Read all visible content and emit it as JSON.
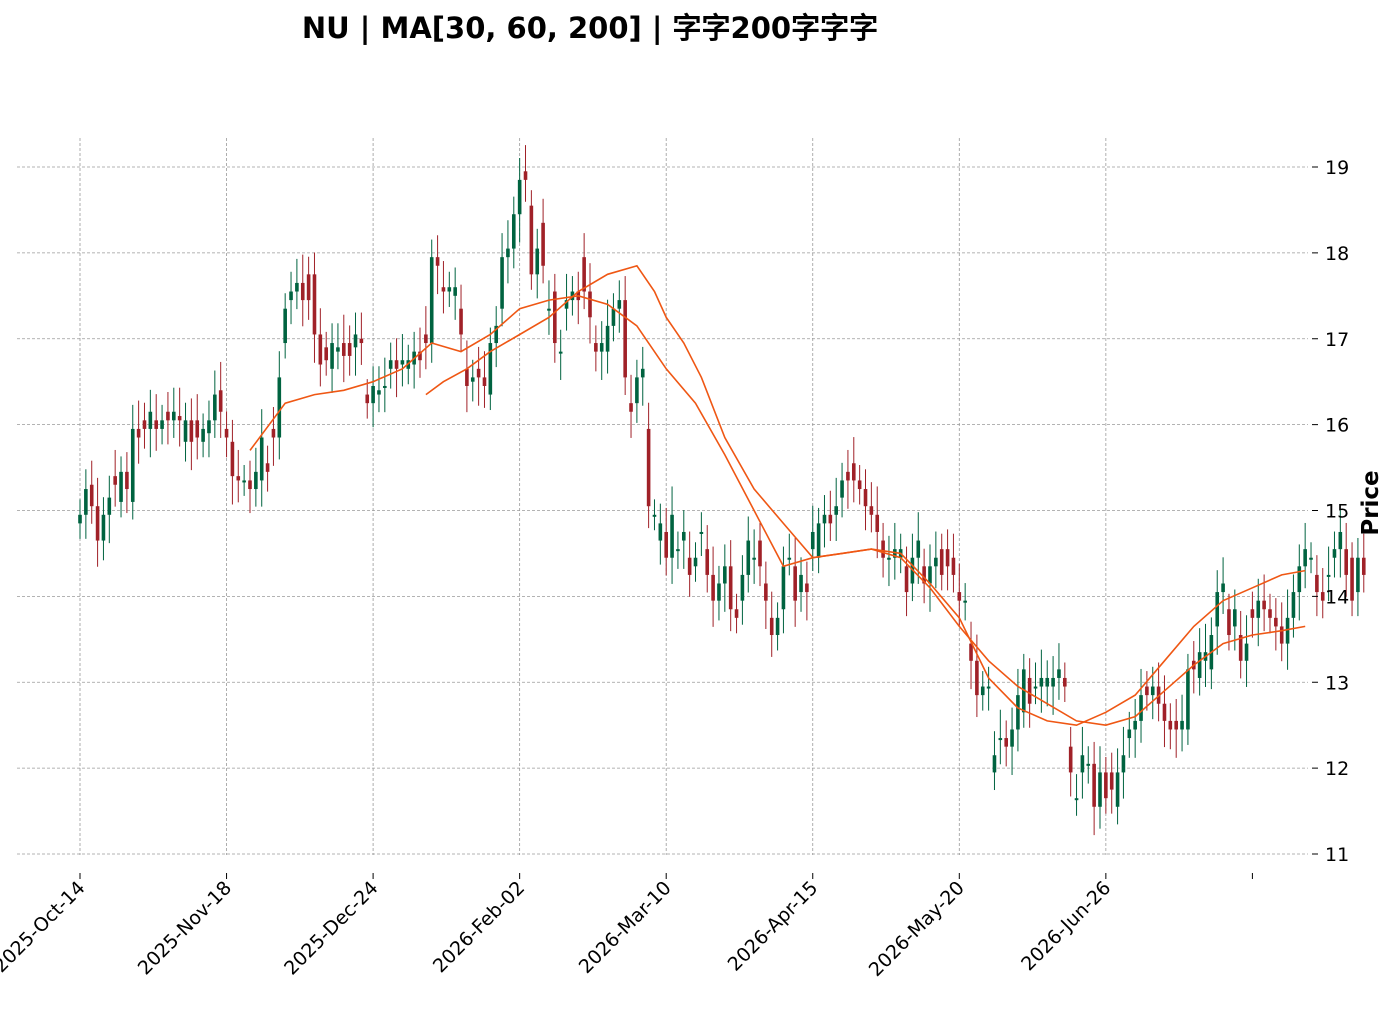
{
  "chart_data": {
    "type": "candlestick",
    "title": "NU  |  MA[30, 60, 200]  |  字字200字字字",
    "xlabel": "",
    "ylabel": "Price",
    "ylim": [
      10.8,
      19.3
    ],
    "y_ticks": [
      11,
      12,
      13,
      14,
      15,
      16,
      17,
      18,
      19
    ],
    "x_ticks": [
      "2025-Oct-14",
      "2025-Nov-18",
      "2025-Dec-24",
      "2026-Feb-02",
      "2026-Mar-10",
      "2026-Apr-15",
      "2026-May-20",
      "2026-Jun-26"
    ],
    "x_tick_positions": [
      0,
      25,
      50,
      75,
      100,
      125,
      150,
      175
    ],
    "x_range": [
      -11,
      210
    ],
    "grid": true,
    "colors": {
      "up": "#006340",
      "down": "#a02128",
      "ma": "#ef5714"
    },
    "candles": [
      [
        14.85,
        14.95
      ],
      [
        14.95,
        15.25
      ],
      [
        15.3,
        15.05
      ],
      [
        15.05,
        14.65
      ],
      [
        14.65,
        14.95
      ],
      [
        14.95,
        15.15
      ],
      [
        15.4,
        15.3
      ],
      [
        15.1,
        15.45
      ],
      [
        15.45,
        15.25
      ],
      [
        15.1,
        15.95
      ],
      [
        15.95,
        15.85
      ],
      [
        16.05,
        15.95
      ],
      [
        15.95,
        16.15
      ],
      [
        16.05,
        15.95
      ],
      [
        15.95,
        16.05
      ],
      [
        16.15,
        16.05
      ],
      [
        16.05,
        16.15
      ],
      [
        16.1,
        16.05
      ],
      [
        15.8,
        16.05
      ],
      [
        16.05,
        15.8
      ],
      [
        16.05,
        15.85
      ],
      [
        15.8,
        15.95
      ],
      [
        15.9,
        16.05
      ],
      [
        16.05,
        16.35
      ],
      [
        16.4,
        16.15
      ],
      [
        15.95,
        15.85
      ],
      [
        15.8,
        15.4
      ],
      [
        15.4,
        15.35
      ],
      [
        15.35,
        15.35
      ],
      [
        15.35,
        15.25
      ],
      [
        15.25,
        15.45
      ],
      [
        15.35,
        15.85
      ],
      [
        15.55,
        15.45
      ],
      [
        15.95,
        15.85
      ],
      [
        15.85,
        16.55
      ],
      [
        16.95,
        17.35
      ],
      [
        17.45,
        17.55
      ],
      [
        17.55,
        17.65
      ],
      [
        17.65,
        17.45
      ],
      [
        17.75,
        17.45
      ],
      [
        17.75,
        17.05
      ],
      [
        17.05,
        16.7
      ],
      [
        16.9,
        16.75
      ],
      [
        16.65,
        16.95
      ],
      [
        16.85,
        16.9
      ],
      [
        16.95,
        16.8
      ],
      [
        16.95,
        16.8
      ],
      [
        16.9,
        17.05
      ],
      [
        17.0,
        16.95
      ],
      [
        16.35,
        16.25
      ],
      [
        16.25,
        16.45
      ],
      [
        16.35,
        16.4
      ],
      [
        16.45,
        16.45
      ],
      [
        16.65,
        16.75
      ],
      [
        16.75,
        16.65
      ],
      [
        16.7,
        16.75
      ],
      [
        16.65,
        16.75
      ],
      [
        16.7,
        16.85
      ],
      [
        16.85,
        16.75
      ],
      [
        17.05,
        16.95
      ],
      [
        16.95,
        17.95
      ],
      [
        17.95,
        17.85
      ],
      [
        17.6,
        17.55
      ],
      [
        17.55,
        17.6
      ],
      [
        17.5,
        17.6
      ],
      [
        17.35,
        17.05
      ],
      [
        16.65,
        16.45
      ],
      [
        16.5,
        16.55
      ],
      [
        16.65,
        16.55
      ],
      [
        16.55,
        16.45
      ],
      [
        16.35,
        16.95
      ],
      [
        16.95,
        17.15
      ],
      [
        17.35,
        17.95
      ],
      [
        17.95,
        18.05
      ],
      [
        18.05,
        18.45
      ],
      [
        18.45,
        18.85
      ],
      [
        18.95,
        18.85
      ],
      [
        18.55,
        17.75
      ],
      [
        17.75,
        18.05
      ],
      [
        18.35,
        17.85
      ],
      [
        17.35,
        17.35
      ],
      [
        17.55,
        16.95
      ],
      [
        16.85,
        16.85
      ],
      [
        17.35,
        17.45
      ],
      [
        17.45,
        17.55
      ],
      [
        17.55,
        17.45
      ],
      [
        17.95,
        17.55
      ],
      [
        17.55,
        17.25
      ],
      [
        16.95,
        16.85
      ],
      [
        16.85,
        16.95
      ],
      [
        16.85,
        17.15
      ],
      [
        17.15,
        17.35
      ],
      [
        17.35,
        17.45
      ],
      [
        17.45,
        16.55
      ],
      [
        16.25,
        16.15
      ],
      [
        16.25,
        16.55
      ],
      [
        16.55,
        16.65
      ],
      [
        15.95,
        15.05
      ],
      [
        14.95,
        14.95
      ],
      [
        14.65,
        14.85
      ],
      [
        14.75,
        14.45
      ],
      [
        14.45,
        14.95
      ],
      [
        14.55,
        14.55
      ],
      [
        14.65,
        14.75
      ],
      [
        14.45,
        14.25
      ],
      [
        14.35,
        14.45
      ],
      [
        14.75,
        14.75
      ],
      [
        14.55,
        14.25
      ],
      [
        14.25,
        13.95
      ],
      [
        13.95,
        14.15
      ],
      [
        14.15,
        14.35
      ],
      [
        14.35,
        13.85
      ],
      [
        13.85,
        13.75
      ],
      [
        13.95,
        14.25
      ],
      [
        14.25,
        14.65
      ],
      [
        14.45,
        14.45
      ],
      [
        14.65,
        14.35
      ],
      [
        14.15,
        13.95
      ],
      [
        13.75,
        13.55
      ],
      [
        13.55,
        13.75
      ],
      [
        13.85,
        14.35
      ],
      [
        14.45,
        14.45
      ],
      [
        14.35,
        13.95
      ],
      [
        14.05,
        14.25
      ],
      [
        14.15,
        14.05
      ],
      [
        14.55,
        14.75
      ],
      [
        14.45,
        14.85
      ],
      [
        14.85,
        14.95
      ],
      [
        14.95,
        14.85
      ],
      [
        14.95,
        15.05
      ],
      [
        15.15,
        15.35
      ],
      [
        15.45,
        15.35
      ],
      [
        15.55,
        15.35
      ],
      [
        15.35,
        15.25
      ],
      [
        15.25,
        15.05
      ],
      [
        15.05,
        14.95
      ],
      [
        14.95,
        14.75
      ],
      [
        14.65,
        14.45
      ],
      [
        14.45,
        14.45
      ],
      [
        14.45,
        14.55
      ],
      [
        14.45,
        14.55
      ],
      [
        14.35,
        14.05
      ],
      [
        14.15,
        14.45
      ],
      [
        14.45,
        14.65
      ],
      [
        14.35,
        14.15
      ],
      [
        14.15,
        14.35
      ],
      [
        14.35,
        14.45
      ],
      [
        14.55,
        14.25
      ],
      [
        14.55,
        14.35
      ],
      [
        14.45,
        14.25
      ],
      [
        14.05,
        13.95
      ],
      [
        13.95,
        13.95
      ],
      [
        13.45,
        13.25
      ],
      [
        13.25,
        12.85
      ],
      [
        12.85,
        12.95
      ],
      [
        12.95,
        12.95
      ],
      [
        11.95,
        12.15
      ],
      [
        12.35,
        12.35
      ],
      [
        12.35,
        12.25
      ],
      [
        12.25,
        12.45
      ],
      [
        12.45,
        12.85
      ],
      [
        12.65,
        13.15
      ],
      [
        13.05,
        12.75
      ],
      [
        12.95,
        12.95
      ],
      [
        12.95,
        13.05
      ],
      [
        12.95,
        13.05
      ],
      [
        12.95,
        13.05
      ],
      [
        13.05,
        13.15
      ],
      [
        13.05,
        12.95
      ],
      [
        12.25,
        11.95
      ],
      [
        11.65,
        11.65
      ],
      [
        11.95,
        12.15
      ],
      [
        12.05,
        12.05
      ],
      [
        12.05,
        11.55
      ],
      [
        11.55,
        11.95
      ],
      [
        11.95,
        11.65
      ],
      [
        11.95,
        11.75
      ],
      [
        11.55,
        11.95
      ],
      [
        11.95,
        12.15
      ],
      [
        12.35,
        12.45
      ],
      [
        12.45,
        12.55
      ],
      [
        12.55,
        12.85
      ],
      [
        12.95,
        12.85
      ],
      [
        12.85,
        12.95
      ],
      [
        12.95,
        12.75
      ],
      [
        12.75,
        12.55
      ],
      [
        12.55,
        12.45
      ],
      [
        12.55,
        12.45
      ],
      [
        12.45,
        12.55
      ],
      [
        12.45,
        13.15
      ],
      [
        13.25,
        13.15
      ],
      [
        13.05,
        13.35
      ],
      [
        13.25,
        13.35
      ],
      [
        13.15,
        13.55
      ],
      [
        13.65,
        14.05
      ],
      [
        14.05,
        14.15
      ],
      [
        13.85,
        13.55
      ],
      [
        13.65,
        13.85
      ],
      [
        13.55,
        13.25
      ],
      [
        13.25,
        13.45
      ],
      [
        13.85,
        13.75
      ],
      [
        13.75,
        13.95
      ],
      [
        13.95,
        13.85
      ],
      [
        13.85,
        13.75
      ],
      [
        13.75,
        13.65
      ],
      [
        13.65,
        13.45
      ],
      [
        13.45,
        13.75
      ],
      [
        13.75,
        14.05
      ],
      [
        14.05,
        14.35
      ],
      [
        14.35,
        14.55
      ],
      [
        14.45,
        14.45
      ],
      [
        14.25,
        14.05
      ],
      [
        14.05,
        13.95
      ],
      [
        14.25,
        14.25
      ],
      [
        14.45,
        14.55
      ],
      [
        14.55,
        14.75
      ],
      [
        14.55,
        14.25
      ],
      [
        14.45,
        13.95
      ],
      [
        14.05,
        14.45
      ],
      [
        14.45,
        14.25
      ]
    ],
    "series": [
      {
        "x": [
          29,
          35,
          40,
          45,
          50,
          55,
          60,
          65,
          70,
          75,
          80,
          85,
          90,
          95,
          100,
          105,
          110,
          115,
          120,
          125,
          130,
          135,
          140,
          145,
          150,
          155,
          160,
          165,
          170,
          175,
          180,
          185,
          190,
          195,
          200,
          205,
          209
        ],
        "values": [
          15.7,
          16.25,
          16.35,
          16.4,
          16.5,
          16.65,
          16.95,
          16.85,
          17.05,
          17.35,
          17.45,
          17.5,
          17.4,
          17.15,
          16.65,
          16.25,
          15.65,
          15.0,
          14.35,
          14.45,
          14.5,
          14.55,
          14.5,
          14.15,
          13.75,
          13.05,
          12.7,
          12.55,
          12.5,
          12.65,
          12.85,
          13.25,
          13.65,
          13.95,
          14.1,
          14.25,
          14.3
        ]
      },
      {
        "x": [
          59,
          62,
          66,
          70,
          75,
          80,
          85,
          90,
          95,
          98,
          100,
          103,
          106,
          110,
          115,
          120,
          125,
          130,
          135,
          140,
          145,
          150,
          155,
          160,
          165,
          170,
          175,
          180,
          185,
          190,
          195,
          200,
          205,
          209
        ],
        "values": [
          16.35,
          16.5,
          16.65,
          16.85,
          17.05,
          17.25,
          17.55,
          17.75,
          17.85,
          17.55,
          17.25,
          16.95,
          16.55,
          15.85,
          15.25,
          14.85,
          14.45,
          14.5,
          14.55,
          14.45,
          14.1,
          13.65,
          13.25,
          12.95,
          12.75,
          12.55,
          12.5,
          12.6,
          12.9,
          13.2,
          13.45,
          13.55,
          13.6,
          13.65
        ]
      }
    ]
  }
}
